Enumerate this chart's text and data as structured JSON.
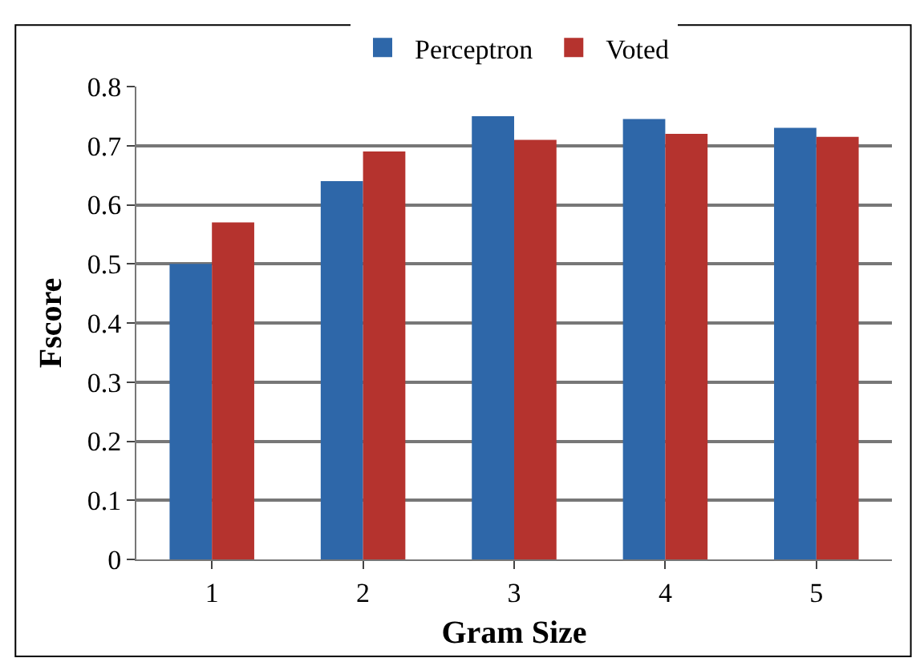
{
  "chart_data": {
    "type": "bar",
    "xlabel": "Gram Size",
    "ylabel": "Fscore",
    "categories": [
      "1",
      "2",
      "3",
      "4",
      "5"
    ],
    "series": [
      {
        "name": "Perceptron",
        "color": "#2e67a9",
        "values": [
          0.5,
          0.64,
          0.75,
          0.745,
          0.73
        ]
      },
      {
        "name": "Voted",
        "color": "#b5332e",
        "values": [
          0.57,
          0.69,
          0.71,
          0.72,
          0.715
        ]
      }
    ],
    "ylim": [
      0,
      0.8
    ],
    "yticks": [
      0,
      0.1,
      0.2,
      0.3,
      0.4,
      0.5,
      0.6,
      0.7,
      0.8
    ],
    "grid": "y",
    "legend": "top"
  }
}
